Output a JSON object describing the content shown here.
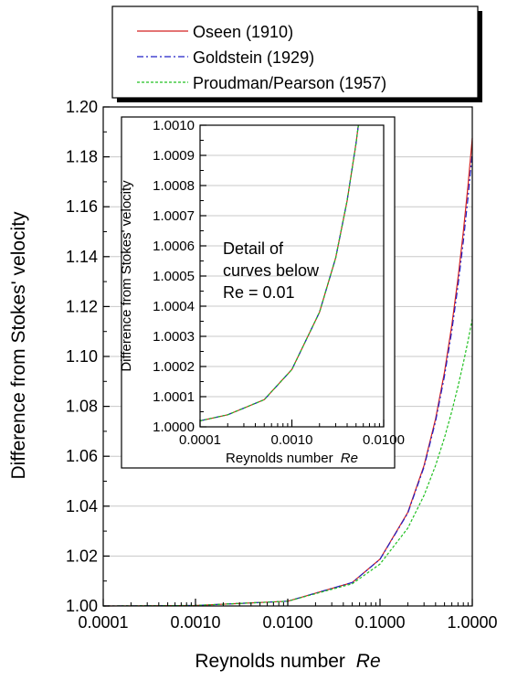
{
  "chart_data": [
    {
      "type": "line",
      "xlabel": "Reynolds number",
      "xlabel_italic": "Re",
      "ylabel": "Difference from Stokes' velocity",
      "xscale": "log",
      "xlim": [
        0.0001,
        1.0
      ],
      "ylim": [
        1.0,
        1.2
      ],
      "xticks": [
        "0.0001",
        "0.0010",
        "0.0100",
        "0.1000",
        "1.0000"
      ],
      "yticks": [
        "1.00",
        "1.02",
        "1.04",
        "1.06",
        "1.08",
        "1.10",
        "1.12",
        "1.14",
        "1.16",
        "1.18",
        "1.20"
      ],
      "grid": "horizontal",
      "legend_position": "top",
      "series": [
        {
          "name": "Oseen (1910)",
          "color": "#d42020",
          "dash": "solid",
          "x": [
            0.0001,
            0.001,
            0.01,
            0.05,
            0.1,
            0.2,
            0.3,
            0.4,
            0.5,
            0.6,
            0.7,
            0.8,
            0.9,
            1.0
          ],
          "y": [
            1.0,
            1.0002,
            1.0019,
            1.0094,
            1.0188,
            1.0375,
            1.0563,
            1.075,
            1.0938,
            1.1125,
            1.1313,
            1.15,
            1.1688,
            1.1875
          ]
        },
        {
          "name": "Goldstein (1929)",
          "color": "#2020c8",
          "dash": "dashdot",
          "x": [
            0.0001,
            0.001,
            0.01,
            0.05,
            0.1,
            0.2,
            0.3,
            0.4,
            0.5,
            0.6,
            0.7,
            0.8,
            0.9,
            1.0
          ],
          "y": [
            1.0,
            1.0002,
            1.0019,
            1.0094,
            1.0187,
            1.0372,
            1.0557,
            1.074,
            1.0922,
            1.1103,
            1.1283,
            1.1461,
            1.1639,
            1.1815
          ]
        },
        {
          "name": "Proudman/Pearson (1957)",
          "color": "#20c020",
          "dash": "dotted",
          "x": [
            0.0001,
            0.001,
            0.01,
            0.05,
            0.1,
            0.2,
            0.3,
            0.4,
            0.5,
            0.6,
            0.7,
            0.8,
            0.9,
            1.0
          ],
          "y": [
            1.0,
            1.0002,
            1.0019,
            1.0089,
            1.0168,
            1.0312,
            1.0443,
            1.0563,
            1.0675,
            1.078,
            1.088,
            1.0974,
            1.1063,
            1.115
          ]
        }
      ]
    },
    {
      "type": "line",
      "xlabel": "Reynolds number",
      "xlabel_italic": "Re",
      "ylabel": "Difference from Stokes' velocity",
      "xscale": "log",
      "xlim": [
        0.0001,
        0.01
      ],
      "ylim": [
        1.0,
        1.001
      ],
      "xticks": [
        "0.0001",
        "0.0010",
        "0.0100"
      ],
      "yticks": [
        "1.0000",
        "1.0001",
        "1.0002",
        "1.0003",
        "1.0004",
        "1.0005",
        "1.0006",
        "1.0007",
        "1.0008",
        "1.0009",
        "1.0010"
      ],
      "grid": "horizontal",
      "annotation": [
        "Detail of",
        "curves below",
        "Re = 0.01"
      ],
      "series": [
        {
          "name": "Oseen (1910)",
          "color": "#d42020",
          "dash": "solid",
          "x": [
            0.0001,
            0.0002,
            0.0005,
            0.001,
            0.002,
            0.003,
            0.004,
            0.005,
            0.0053
          ],
          "y": [
            1.00002,
            1.00004,
            1.00009,
            1.00019,
            1.00038,
            1.00056,
            1.00075,
            1.00094,
            1.001
          ]
        },
        {
          "name": "Goldstein (1929)",
          "color": "#2020c8",
          "dash": "dashdot",
          "x": [
            0.0001,
            0.0002,
            0.0005,
            0.001,
            0.002,
            0.003,
            0.004,
            0.005,
            0.0053
          ],
          "y": [
            1.00002,
            1.00004,
            1.00009,
            1.00019,
            1.00038,
            1.00056,
            1.00075,
            1.00094,
            1.001
          ]
        },
        {
          "name": "Proudman/Pearson (1957)",
          "color": "#20c020",
          "dash": "dotted",
          "x": [
            0.0001,
            0.0002,
            0.0005,
            0.001,
            0.002,
            0.003,
            0.004,
            0.005,
            0.0053
          ],
          "y": [
            1.00002,
            1.00004,
            1.00009,
            1.00019,
            1.00038,
            1.00056,
            1.00075,
            1.00094,
            1.001
          ]
        }
      ]
    }
  ]
}
